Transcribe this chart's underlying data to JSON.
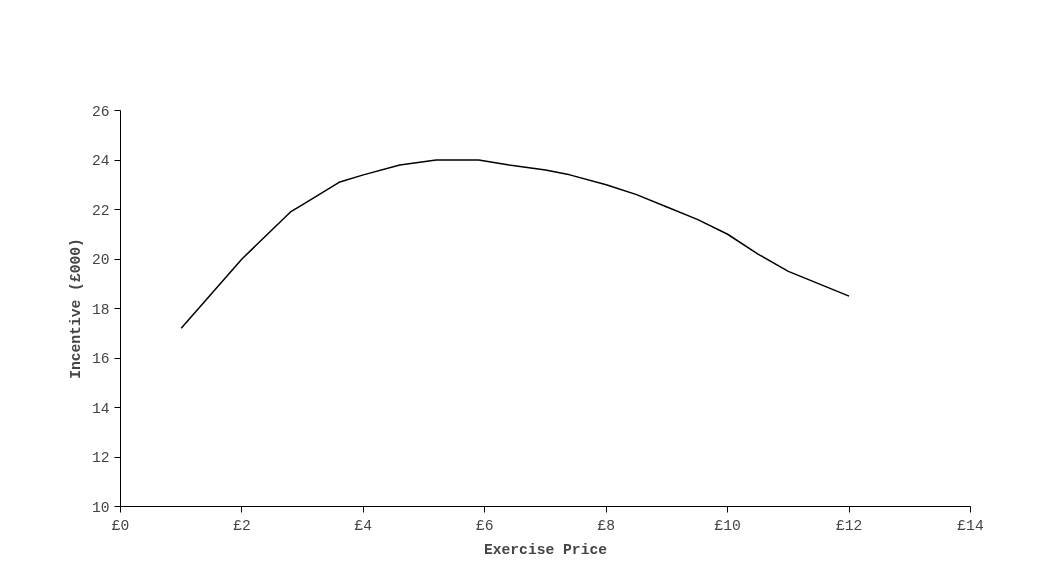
{
  "chart_data": {
    "type": "line",
    "xlabel": "Exercise Price",
    "ylabel": "Incentive (£000)",
    "x": [
      1,
      2,
      2.8,
      3,
      3.6,
      4,
      4.6,
      5.2,
      5.9,
      6.4,
      7,
      7.4,
      8,
      8.5,
      9,
      9.5,
      10,
      10.5,
      11,
      12
    ],
    "series": [
      {
        "color": "#000000",
        "values": [
          17.2,
          20.0,
          21.9,
          22.2,
          23.1,
          23.4,
          23.8,
          24.0,
          24.0,
          23.8,
          23.6,
          23.4,
          23.0,
          22.6,
          22.1,
          21.6,
          21.0,
          20.2,
          19.5,
          18.5
        ]
      }
    ],
    "xlim": [
      0,
      14
    ],
    "ylim": [
      10,
      26
    ],
    "xticks": [
      {
        "value": 0,
        "label": "£0"
      },
      {
        "value": 2,
        "label": "£2"
      },
      {
        "value": 4,
        "label": "£4"
      },
      {
        "value": 6,
        "label": "£6"
      },
      {
        "value": 8,
        "label": "£8"
      },
      {
        "value": 10,
        "label": "£10"
      },
      {
        "value": 12,
        "label": "£12"
      },
      {
        "value": 14,
        "label": "£14"
      }
    ],
    "yticks": [
      10,
      12,
      14,
      16,
      18,
      20,
      22,
      24,
      26
    ],
    "grid": false,
    "marker": "none",
    "line_style": "solid"
  }
}
